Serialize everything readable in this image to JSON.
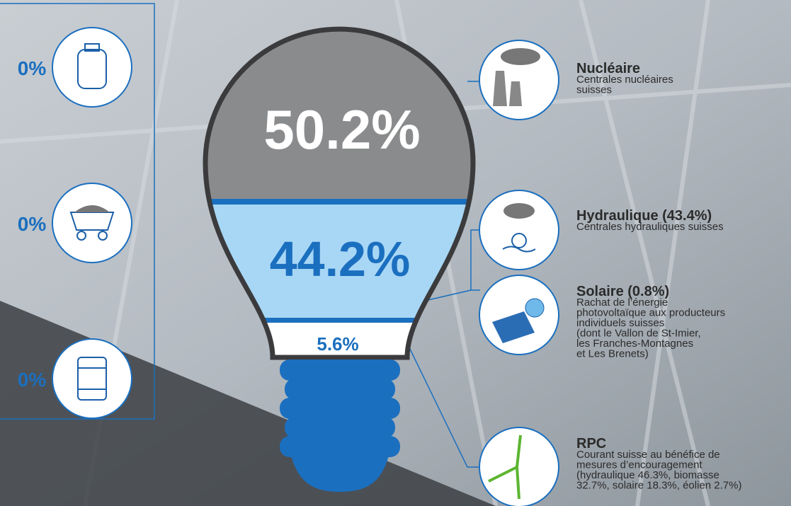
{
  "bulb": {
    "segments": [
      {
        "label": "50.2%"
      },
      {
        "label": "44.2%"
      },
      {
        "label": "5.6%"
      }
    ]
  },
  "left_items": [
    {
      "label": "0%"
    },
    {
      "label": "0%"
    },
    {
      "label": "0%"
    }
  ],
  "right_items": [
    {
      "title": "Nucléaire",
      "lines": [
        "Centrales nucléaires",
        "suisses"
      ]
    },
    {
      "title": "Hydraulique (43.4%)",
      "lines": [
        "Centrales hydrauliques suisses"
      ]
    },
    {
      "title": "Solaire (0.8%)",
      "lines": [
        "Rachat de l’énergie",
        "photovoltaïque aux producteurs",
        "individuels suisses",
        "(dont le Vallon de St-Imier,",
        "les Franches-Montagnes",
        "et Les Brenets)"
      ]
    },
    {
      "title": "RPC",
      "lines": [
        "Courant suisse au bénéfice de",
        "mesures d’encouragement",
        "(hydraulique 46.3%, biomasse",
        "32.7%, solaire 18.3%, éolien 2.7%)"
      ]
    }
  ]
}
